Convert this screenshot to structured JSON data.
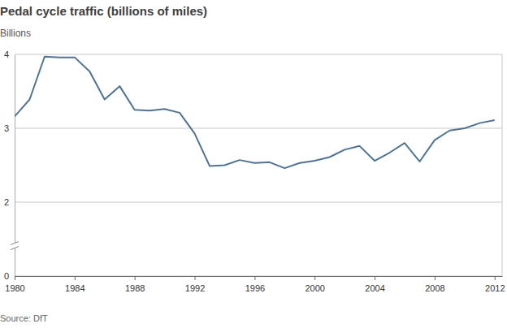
{
  "chart_data": {
    "type": "line",
    "title": "Pedal cycle traffic (billions of miles)",
    "subtitle": "Billions",
    "source": "Source: DfT",
    "x": [
      1980,
      1981,
      1982,
      1983,
      1984,
      1985,
      1986,
      1987,
      1988,
      1989,
      1990,
      1991,
      1992,
      1993,
      1994,
      1995,
      1996,
      1997,
      1998,
      1999,
      2000,
      2001,
      2002,
      2003,
      2004,
      2005,
      2006,
      2007,
      2008,
      2009,
      2010,
      2011,
      2012
    ],
    "values": [
      3.16,
      3.39,
      3.97,
      3.96,
      3.96,
      3.77,
      3.39,
      3.57,
      3.25,
      3.24,
      3.26,
      3.21,
      2.93,
      2.49,
      2.5,
      2.57,
      2.53,
      2.54,
      2.46,
      2.53,
      2.56,
      2.61,
      2.71,
      2.76,
      2.56,
      2.67,
      2.8,
      2.55,
      2.84,
      2.97,
      3.0,
      3.07,
      3.11
    ],
    "color": "#4f7394",
    "xlim": [
      1980,
      2012.5
    ],
    "xticks": [
      1980,
      1984,
      1988,
      1992,
      1996,
      2000,
      2004,
      2008,
      2012
    ],
    "ylim": [
      0,
      4
    ],
    "yticks": [
      0,
      2,
      3,
      4
    ],
    "grid": true
  }
}
